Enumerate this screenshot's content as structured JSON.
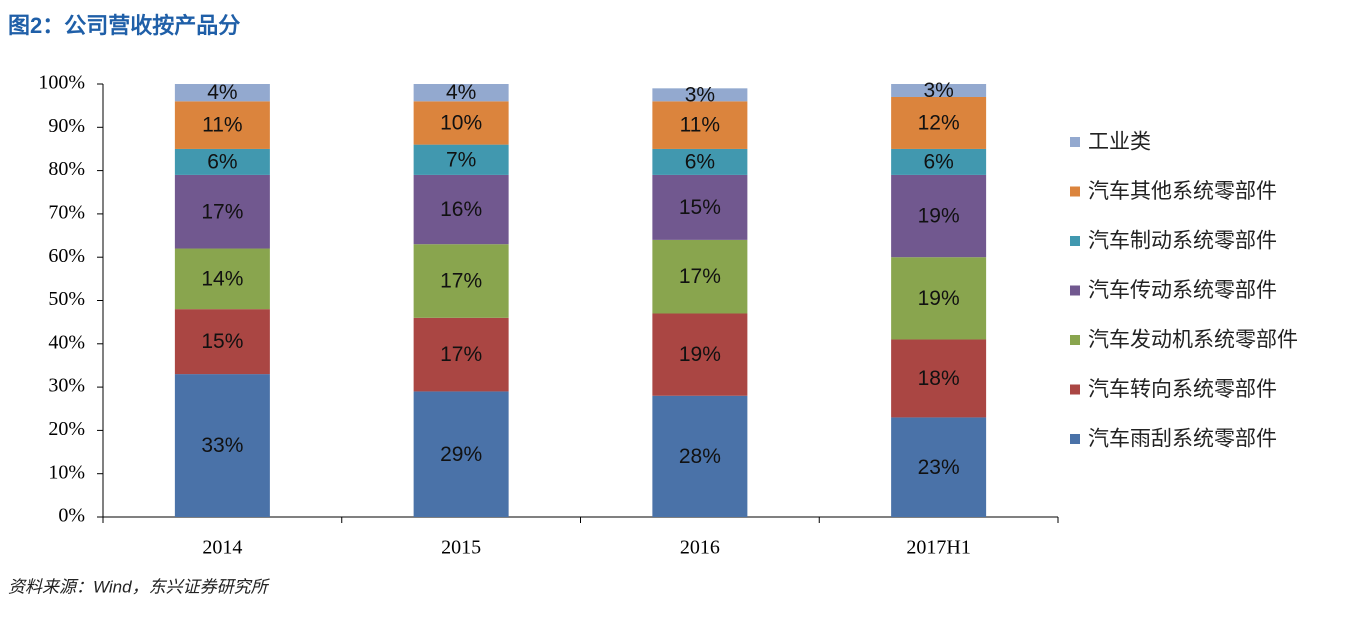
{
  "chart_data": {
    "type": "stacked_bar_percent",
    "title": "图2：公司营收按产品分",
    "source": "资料来源：Wind，东兴证券研究所",
    "categories": [
      "2014",
      "2015",
      "2016",
      "2017H1"
    ],
    "ylim": [
      0,
      100
    ],
    "yticks": [
      {
        "value": 0,
        "label": "0%"
      },
      {
        "value": 10,
        "label": "10%"
      },
      {
        "value": 20,
        "label": "20%"
      },
      {
        "value": 30,
        "label": "30%"
      },
      {
        "value": 40,
        "label": "40%"
      },
      {
        "value": 50,
        "label": "50%"
      },
      {
        "value": 60,
        "label": "60%"
      },
      {
        "value": 70,
        "label": "70%"
      },
      {
        "value": 80,
        "label": "80%"
      },
      {
        "value": 90,
        "label": "90%"
      },
      {
        "value": 100,
        "label": "100%"
      }
    ],
    "legend": "right",
    "series": [
      {
        "name": "汽车雨刮系统零部件",
        "color": "#4a72a8",
        "values": [
          33,
          29,
          28,
          23
        ],
        "value_labels": [
          "33%",
          "29%",
          "28%",
          "23%"
        ]
      },
      {
        "name": "汽车转向系统零部件",
        "color": "#aa4643",
        "values": [
          15,
          17,
          19,
          18
        ],
        "value_labels": [
          "15%",
          "17%",
          "19%",
          "18%"
        ]
      },
      {
        "name": "汽车发动机系统零部件",
        "color": "#89a54e",
        "values": [
          14,
          17,
          17,
          19
        ],
        "value_labels": [
          "14%",
          "17%",
          "17%",
          "19%"
        ]
      },
      {
        "name": "汽车传动系统零部件",
        "color": "#71588f",
        "values": [
          17,
          16,
          15,
          19
        ],
        "value_labels": [
          "17%",
          "16%",
          "15%",
          "19%"
        ]
      },
      {
        "name": "汽车制动系统零部件",
        "color": "#4198af",
        "values": [
          6,
          7,
          6,
          6
        ],
        "value_labels": [
          "6%",
          "7%",
          "6%",
          "6%"
        ]
      },
      {
        "name": "汽车其他系统零部件",
        "color": "#db843d",
        "values": [
          11,
          10,
          11,
          12
        ],
        "value_labels": [
          "11%",
          "10%",
          "11%",
          "12%"
        ]
      },
      {
        "name": "工业类",
        "color": "#93a9cf",
        "values": [
          4,
          4,
          3,
          3
        ],
        "value_labels": [
          "4%",
          "4%",
          "3%",
          "3%"
        ]
      }
    ]
  }
}
